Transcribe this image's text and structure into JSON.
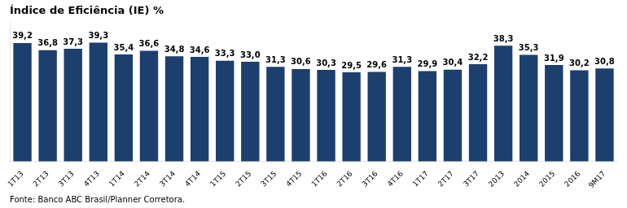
{
  "chart_data": {
    "type": "bar",
    "title": "Índice de Eficiência (IE) %",
    "annotations": [
      "Fonte: Banco ABC Brasil/Planner Corretora."
    ],
    "categories": [
      "1T13",
      "2T13",
      "3T13",
      "4T13",
      "1T14",
      "2T14",
      "3T14",
      "4T14",
      "1T15",
      "2T15",
      "3T15",
      "4T15",
      "1T16",
      "2T16",
      "3T16",
      "4T16",
      "1T17",
      "2T17",
      "3T17",
      "2013",
      "2014",
      "2015",
      "2016",
      "9M17"
    ],
    "values": [
      39.2,
      36.8,
      37.3,
      39.3,
      35.4,
      36.6,
      34.8,
      34.6,
      33.3,
      33.0,
      31.3,
      30.6,
      30.3,
      29.5,
      29.6,
      31.3,
      29.9,
      30.4,
      32.2,
      38.3,
      35.3,
      31.9,
      30.2,
      30.8
    ],
    "value_labels": [
      "39,2",
      "36,8",
      "37,3",
      "39,3",
      "35,4",
      "36,6",
      "34,8",
      "34,6",
      "33,3",
      "33,0",
      "31,3",
      "30,6",
      "30,3",
      "29,5",
      "29,6",
      "31,3",
      "29,9",
      "30,4",
      "32,2",
      "38,3",
      "35,3",
      "31,9",
      "30,2",
      "30,8"
    ],
    "color": "#1c3f6e",
    "ylim": [
      0,
      46
    ],
    "grid": false,
    "data_labels": true,
    "tick_labels": "x"
  }
}
